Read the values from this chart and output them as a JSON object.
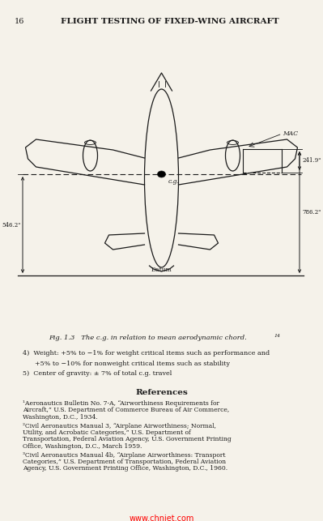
{
  "page_number": "16",
  "header": "FLIGHT TESTING OF FIXED-WING AIRCRAFT",
  "fig_caption": "Fig. 1.3   The c.g. in relation to mean aerodynamic chord.",
  "fig_caption_superscript": "14",
  "body_line1": "4)  Weight: +5% to −1% for weight critical items such as performance and",
  "body_line2": "      +5% to −10% for nonweight critical items such as stability",
  "body_line3": "5)  Center of gravity: ± 7% of total c.g. travel",
  "references_title": "References",
  "ref1": "¹Aeronautics Bulletin No. 7-A, “Airworthiness Requirements for Aircraft,” U.S. Department of Commerce Bureau of Air Commerce, Washington, D.C., 1934.",
  "ref2": "²Civil Aeronautics Manual 3, “Airplane Airworthiness; Normal, Utility, and Acrobatic Categories,” U.S. Department of Transportation, Federal Aviation Agency, U.S. Government Printing Office, Washington, D.C., March 1959.",
  "ref3": "³Civil Aeronautics Manual 4b, “Airplane Airworthiness: Transport Categories,” U.S. Department of Transportation, Federal Aviation Agency, U.S. Government Printing Office, Washington, D.C., 1960.",
  "watermark": "www.chnjet.com",
  "dim_right_top": "241.9\"",
  "dim_right_bottom": "786.2\"",
  "dim_left": "546.2\"",
  "mac_label": "MAC",
  "cg_label": "c.g.",
  "datum_label": "Datum",
  "bg_color": "#f5f2ea",
  "text_color": "#1a1a1a"
}
